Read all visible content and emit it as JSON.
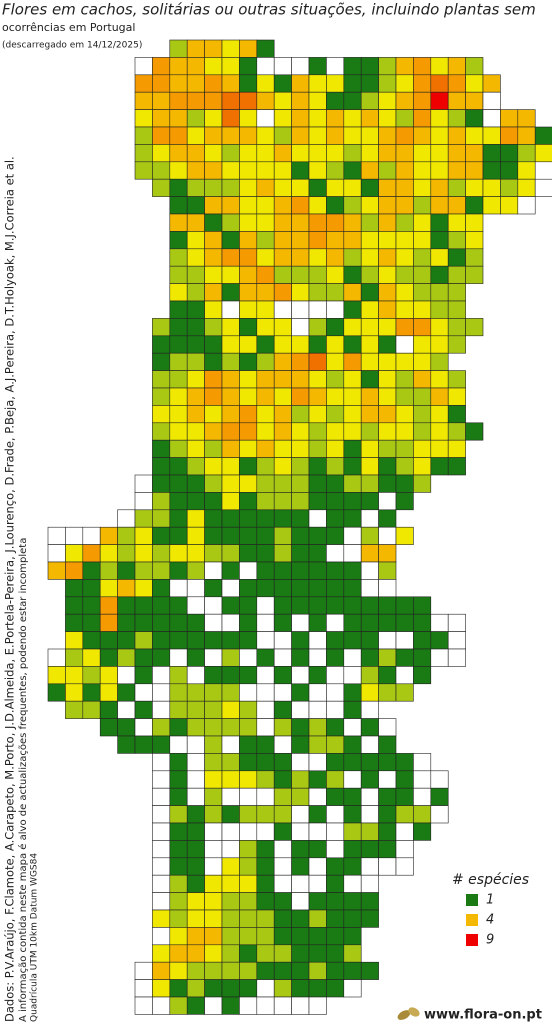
{
  "header": {
    "title": "Flores em cachos, solitárias ou outras situações, incluindo plantas sem",
    "subtitle": "ocorrências em Portugal",
    "date": "(descarregado em 14/12/2025)"
  },
  "credits": {
    "authors": "Dados: P.V.Araújo, F.Clamote, A.Carapeto, M.Porto, J.D.Almeida, E.Portela-Pereira, J.Lourenço, D.Frade, P.Beja, A.J.Pereira, D.T.Holyoak, M.J.Correia et al.",
    "note": "A informação contida neste mapa é alvo de actualizações frequentes, podendo estar incompleta",
    "grid": "Quadrícula UTM 10km Datum WGS84"
  },
  "legend": {
    "title": "# espécies",
    "entries": [
      1,
      4,
      9
    ]
  },
  "logo": "www.flora-on.pt",
  "map": {
    "colors": {
      "0": "#ffffff",
      "1": "#1a7a14",
      "2": "#a8c814",
      "3": "#f0e800",
      "4": "#f5b800",
      "5": "#f59a00",
      "6": "#f07000",
      "9": "#ee0000"
    },
    "rows": [
      [
        null,
        null,
        null,
        null,
        null,
        null,
        null,
        2,
        4,
        4,
        3,
        4,
        1
      ],
      [
        null,
        null,
        null,
        null,
        null,
        0,
        5,
        4,
        4,
        3,
        3,
        1,
        0,
        0,
        0,
        1,
        0,
        1,
        1,
        2,
        4,
        5,
        3,
        4,
        2
      ],
      [
        null,
        null,
        null,
        null,
        null,
        5,
        5,
        4,
        4,
        5,
        4,
        1,
        3,
        1,
        4,
        3,
        3,
        1,
        1,
        2,
        3,
        5,
        6,
        5,
        3,
        4
      ],
      [
        null,
        null,
        null,
        null,
        null,
        4,
        4,
        5,
        5,
        5,
        6,
        6,
        4,
        3,
        4,
        3,
        1,
        1,
        2,
        3,
        4,
        5,
        9,
        4,
        4,
        0
      ],
      [
        null,
        null,
        null,
        null,
        null,
        3,
        4,
        4,
        2,
        3,
        6,
        3,
        0,
        3,
        4,
        3,
        4,
        3,
        4,
        3,
        2,
        5,
        3,
        2,
        1,
        0,
        4,
        4
      ],
      [
        null,
        null,
        null,
        null,
        null,
        2,
        5,
        5,
        3,
        4,
        4,
        4,
        3,
        2,
        4,
        3,
        4,
        3,
        3,
        4,
        5,
        4,
        3,
        4,
        3,
        3,
        5,
        4,
        1,
        2
      ],
      [
        null,
        null,
        null,
        null,
        null,
        2,
        3,
        4,
        4,
        3,
        2,
        3,
        3,
        4,
        3,
        3,
        3,
        2,
        3,
        4,
        4,
        3,
        3,
        4,
        4,
        1,
        1,
        2,
        3
      ],
      [
        null,
        null,
        null,
        null,
        null,
        2,
        2,
        3,
        4,
        4,
        3,
        3,
        3,
        3,
        1,
        3,
        2,
        1,
        4,
        2,
        4,
        3,
        3,
        4,
        4,
        1,
        1,
        3
      ],
      [
        null,
        null,
        null,
        null,
        null,
        null,
        2,
        1,
        2,
        2,
        2,
        3,
        4,
        3,
        3,
        1,
        3,
        3,
        1,
        4,
        4,
        3,
        4,
        2,
        3,
        3,
        2,
        3,
        0
      ],
      [
        null,
        null,
        null,
        null,
        null,
        null,
        null,
        1,
        1,
        4,
        4,
        3,
        3,
        4,
        5,
        3,
        1,
        2,
        3,
        4,
        4,
        2,
        4,
        4,
        1,
        3,
        3,
        0
      ],
      [
        null,
        null,
        null,
        null,
        null,
        null,
        null,
        4,
        4,
        1,
        2,
        3,
        3,
        4,
        4,
        5,
        5,
        4,
        2,
        4,
        2,
        3,
        1,
        3,
        3
      ],
      [
        null,
        null,
        null,
        null,
        null,
        null,
        null,
        1,
        3,
        4,
        1,
        4,
        2,
        4,
        4,
        5,
        4,
        4,
        3,
        3,
        3,
        3,
        1,
        2,
        3
      ],
      [
        null,
        null,
        null,
        null,
        null,
        null,
        null,
        2,
        3,
        4,
        5,
        5,
        3,
        4,
        4,
        3,
        4,
        2,
        3,
        4,
        3,
        2,
        3,
        1,
        2
      ],
      [
        null,
        null,
        null,
        null,
        null,
        null,
        null,
        2,
        2,
        3,
        3,
        4,
        5,
        2,
        2,
        2,
        3,
        1,
        2,
        3,
        2,
        2,
        1,
        2,
        2
      ],
      [
        null,
        null,
        null,
        null,
        null,
        null,
        null,
        3,
        2,
        4,
        1,
        4,
        4,
        5,
        3,
        2,
        2,
        4,
        1,
        4,
        3,
        2,
        2,
        2
      ],
      [
        null,
        null,
        null,
        null,
        null,
        null,
        null,
        1,
        1,
        3,
        0,
        3,
        3,
        0,
        0,
        0,
        0,
        1,
        3,
        4,
        3,
        3,
        2,
        2
      ],
      [
        null,
        null,
        null,
        null,
        null,
        null,
        2,
        1,
        1,
        2,
        3,
        1,
        3,
        3,
        0,
        2,
        1,
        3,
        3,
        3,
        5,
        5,
        3,
        2,
        2
      ],
      [
        null,
        null,
        null,
        null,
        null,
        null,
        1,
        1,
        1,
        1,
        3,
        3,
        1,
        3,
        3,
        1,
        3,
        1,
        3,
        1,
        0,
        3,
        3,
        2
      ],
      [
        null,
        null,
        null,
        null,
        null,
        null,
        1,
        2,
        2,
        1,
        2,
        1,
        2,
        4,
        5,
        6,
        3,
        5,
        3,
        3,
        3,
        3,
        2
      ],
      [
        null,
        null,
        null,
        null,
        null,
        null,
        2,
        2,
        3,
        5,
        4,
        3,
        4,
        4,
        4,
        3,
        2,
        3,
        1,
        3,
        2,
        4,
        3,
        2
      ],
      [
        null,
        null,
        null,
        null,
        null,
        null,
        2,
        3,
        4,
        5,
        4,
        3,
        4,
        3,
        5,
        4,
        3,
        3,
        4,
        3,
        2,
        2,
        4,
        3
      ],
      [
        null,
        null,
        null,
        null,
        null,
        null,
        3,
        3,
        4,
        3,
        4,
        5,
        3,
        4,
        2,
        3,
        2,
        3,
        4,
        4,
        3,
        2,
        3,
        1
      ],
      [
        null,
        null,
        null,
        null,
        null,
        null,
        2,
        3,
        3,
        4,
        5,
        5,
        3,
        4,
        3,
        2,
        3,
        3,
        2,
        3,
        3,
        2,
        3,
        2,
        1
      ],
      [
        null,
        null,
        null,
        null,
        null,
        null,
        1,
        2,
        3,
        2,
        4,
        3,
        4,
        3,
        3,
        2,
        3,
        1,
        3,
        2,
        2,
        3,
        3,
        3
      ],
      [
        null,
        null,
        null,
        null,
        null,
        null,
        1,
        1,
        2,
        3,
        3,
        1,
        2,
        3,
        2,
        1,
        2,
        1,
        3,
        1,
        2,
        3,
        1,
        1
      ],
      [
        null,
        null,
        null,
        null,
        null,
        0,
        1,
        1,
        1,
        2,
        3,
        3,
        2,
        2,
        2,
        1,
        1,
        2,
        2,
        1,
        1,
        2
      ],
      [
        null,
        null,
        null,
        null,
        null,
        0,
        2,
        1,
        1,
        1,
        3,
        1,
        2,
        2,
        2,
        1,
        1,
        1,
        1,
        0,
        1
      ],
      [
        null,
        null,
        null,
        null,
        0,
        2,
        2,
        1,
        3,
        1,
        1,
        1,
        1,
        1,
        1,
        0,
        1,
        1,
        0,
        1
      ],
      [
        0,
        0,
        0,
        4,
        2,
        3,
        1,
        1,
        3,
        1,
        1,
        1,
        1,
        2,
        1,
        1,
        1,
        0,
        2,
        0,
        3
      ],
      [
        0,
        3,
        5,
        3,
        2,
        3,
        2,
        3,
        3,
        2,
        2,
        1,
        1,
        2,
        1,
        1,
        0,
        0,
        4,
        4
      ],
      [
        4,
        5,
        1,
        2,
        1,
        2,
        2,
        1,
        2,
        0,
        1,
        0,
        1,
        1,
        1,
        1,
        1,
        1,
        0,
        2
      ],
      [
        null,
        1,
        1,
        3,
        4,
        3,
        1,
        0,
        0,
        1,
        0,
        1,
        1,
        1,
        1,
        1,
        1,
        1,
        0,
        0
      ],
      [
        null,
        1,
        1,
        5,
        1,
        1,
        1,
        1,
        0,
        0,
        1,
        1,
        0,
        1,
        1,
        1,
        1,
        1,
        1,
        1,
        1,
        1
      ],
      [
        null,
        1,
        1,
        5,
        1,
        1,
        1,
        1,
        1,
        0,
        0,
        1,
        0,
        1,
        0,
        1,
        0,
        1,
        1,
        1,
        1,
        1,
        0,
        0
      ],
      [
        null,
        3,
        1,
        1,
        1,
        2,
        1,
        1,
        1,
        1,
        1,
        1,
        0,
        0,
        1,
        0,
        1,
        1,
        1,
        0,
        0,
        1,
        1,
        0
      ],
      [
        0,
        2,
        3,
        1,
        2,
        1,
        1,
        0,
        1,
        0,
        2,
        0,
        1,
        0,
        1,
        0,
        1,
        0,
        1,
        2,
        1,
        1,
        0,
        0
      ],
      [
        3,
        3,
        2,
        3,
        0,
        1,
        0,
        2,
        0,
        1,
        1,
        1,
        0,
        1,
        0,
        1,
        0,
        0,
        2,
        1,
        0,
        1
      ],
      [
        1,
        3,
        1,
        3,
        1,
        0,
        0,
        2,
        2,
        2,
        2,
        0,
        0,
        0,
        1,
        0,
        0,
        1,
        3,
        2,
        2
      ],
      [
        null,
        2,
        2,
        1,
        0,
        1,
        0,
        2,
        2,
        2,
        3,
        2,
        0,
        1,
        0,
        0,
        0,
        1,
        0
      ],
      [
        null,
        null,
        null,
        1,
        1,
        0,
        2,
        1,
        2,
        2,
        2,
        2,
        0,
        2,
        1,
        2,
        1,
        0,
        1,
        0
      ],
      [
        null,
        null,
        null,
        null,
        1,
        1,
        1,
        0,
        0,
        2,
        0,
        1,
        1,
        0,
        1,
        2,
        2,
        1,
        0,
        1
      ],
      [
        null,
        null,
        null,
        null,
        null,
        null,
        0,
        1,
        0,
        2,
        2,
        1,
        1,
        1,
        0,
        0,
        1,
        1,
        1,
        1,
        1,
        0
      ],
      [
        null,
        null,
        null,
        null,
        null,
        null,
        0,
        1,
        0,
        3,
        3,
        3,
        2,
        1,
        2,
        1,
        2,
        0,
        1,
        0,
        1,
        0,
        0
      ],
      [
        null,
        null,
        null,
        null,
        null,
        null,
        0,
        1,
        0,
        2,
        0,
        0,
        0,
        2,
        2,
        0,
        1,
        1,
        0,
        1,
        1,
        0,
        1
      ],
      [
        null,
        null,
        null,
        null,
        null,
        null,
        0,
        2,
        1,
        2,
        1,
        2,
        2,
        2,
        0,
        1,
        0,
        1,
        0,
        1,
        2,
        2,
        0
      ],
      [
        null,
        null,
        null,
        null,
        null,
        null,
        0,
        1,
        1,
        0,
        0,
        0,
        0,
        1,
        0,
        0,
        0,
        2,
        2,
        1,
        0,
        1
      ],
      [
        null,
        null,
        null,
        null,
        null,
        null,
        0,
        1,
        1,
        0,
        0,
        2,
        1,
        0,
        1,
        1,
        0,
        1,
        1,
        1,
        0
      ],
      [
        null,
        null,
        null,
        null,
        null,
        null,
        0,
        1,
        1,
        0,
        3,
        2,
        1,
        0,
        1,
        0,
        1,
        1,
        0,
        0,
        0
      ],
      [
        null,
        null,
        null,
        null,
        null,
        null,
        0,
        2,
        1,
        3,
        3,
        3,
        1,
        0,
        0,
        0,
        1,
        0,
        0
      ],
      [
        null,
        null,
        null,
        null,
        null,
        null,
        0,
        2,
        3,
        3,
        2,
        2,
        1,
        1,
        0,
        1,
        1,
        1,
        1
      ],
      [
        null,
        null,
        null,
        null,
        null,
        null,
        3,
        2,
        3,
        3,
        2,
        2,
        2,
        1,
        1,
        2,
        1,
        1,
        1
      ],
      [
        null,
        null,
        null,
        null,
        null,
        null,
        0,
        3,
        4,
        4,
        2,
        2,
        2,
        1,
        1,
        1,
        1,
        1
      ],
      [
        null,
        null,
        null,
        null,
        null,
        null,
        3,
        4,
        4,
        3,
        2,
        1,
        2,
        2,
        1,
        1,
        1,
        2
      ],
      [
        null,
        null,
        null,
        null,
        null,
        0,
        4,
        3,
        2,
        2,
        2,
        2,
        1,
        1,
        1,
        2,
        1,
        1,
        1
      ],
      [
        null,
        null,
        null,
        null,
        null,
        0,
        3,
        1,
        2,
        1,
        1,
        1,
        0,
        2,
        1,
        1,
        1,
        0
      ],
      [
        null,
        null,
        null,
        null,
        null,
        0,
        0,
        2,
        1,
        0,
        1,
        0,
        0,
        0,
        0,
        0
      ]
    ]
  }
}
